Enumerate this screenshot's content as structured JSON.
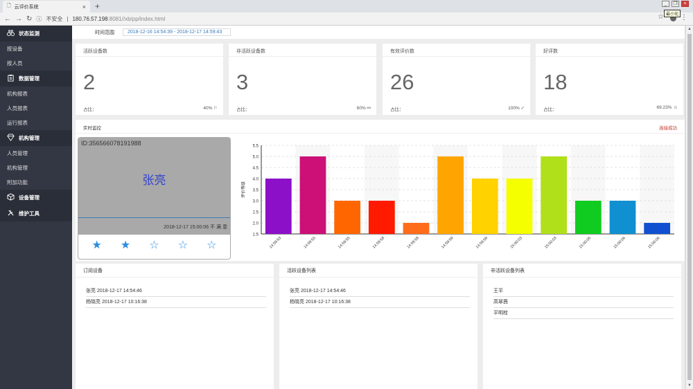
{
  "browser": {
    "tab_title": "云评价系统",
    "security": "不安全",
    "url_host": "180.76.57.198",
    "url_path": ":8081//xb/pp/index.html",
    "tooltip": "最小化"
  },
  "sidebar": [
    {
      "group": "状态监测",
      "icon": "binoculars-icon",
      "items": [
        "按设备",
        "按人员"
      ]
    },
    {
      "group": "数据管理",
      "icon": "clipboard-icon",
      "items": [
        "机构报表",
        "人员报表",
        "运行报表"
      ]
    },
    {
      "group": "机构管理",
      "icon": "diamond-icon",
      "items": [
        "人员管理",
        "机构管理",
        "附加功能"
      ]
    },
    {
      "group": "设备管理",
      "icon": "cube-icon",
      "items": []
    },
    {
      "group": "维护工具",
      "icon": "tools-icon",
      "items": []
    }
  ],
  "time_range": {
    "label": "时间范围",
    "value": "2018-12-16 14:54:39 - 2018-12-17 14:59:43"
  },
  "cards": [
    {
      "title": "活跃设备数",
      "value": "2",
      "ratio_label": "占比：",
      "percent": "40%",
      "icon": "flag-icon",
      "glyph": "⚐"
    },
    {
      "title": "非活跃设备数",
      "value": "3",
      "ratio_label": "占比：",
      "percent": "60%",
      "icon": "link-icon",
      "glyph": "⚯"
    },
    {
      "title": "有效评价数",
      "value": "26",
      "ratio_label": "占比：",
      "percent": "100%",
      "icon": "check-icon",
      "glyph": "✓"
    },
    {
      "title": "好评数",
      "value": "18",
      "ratio_label": "占比：",
      "percent": "69.23%",
      "icon": "smile-icon",
      "glyph": "☺"
    }
  ],
  "realtime": {
    "title": "实时监控",
    "status": "连接成功",
    "monitor": {
      "device_id": "ID:356566078191988",
      "person": "张亮",
      "timestamp": "2018-12-17 15:00:06 不 满 意",
      "rating": 2,
      "max_rating": 5
    }
  },
  "chart_data": {
    "type": "bar",
    "ylabel": "评价等级",
    "ylim": [
      1.5,
      5.5
    ],
    "yticks": [
      1.5,
      2.0,
      2.5,
      3.0,
      3.5,
      4.0,
      4.5,
      5.0,
      5.5
    ],
    "categories": [
      "14:59:53",
      "14:59:55",
      "14:59:55",
      "14:59:58",
      "14:59:58",
      "14:59:59",
      "14:59:59",
      "15:00:03",
      "15:00:03",
      "15:00:05",
      "15:00:06",
      "15:00:06"
    ],
    "values": [
      4,
      5,
      3,
      3,
      2,
      5,
      4,
      4,
      5,
      3,
      3,
      2
    ],
    "colors": [
      "#8b10c8",
      "#cc1077",
      "#ff6600",
      "#ff1a00",
      "#ff6c1a",
      "#ffa500",
      "#ffd200",
      "#f5ff00",
      "#b0e01a",
      "#10cc20",
      "#1090d0",
      "#1050d0"
    ]
  },
  "panels": [
    {
      "title": "订阅设备",
      "rows": [
        "张亮 2018-12-17 14:54:46",
        "杨晓亮 2018-12-17 10:16:38"
      ]
    },
    {
      "title": "活跃设备列表",
      "rows": [
        "张亮 2018-12-17 14:54:46",
        "杨晓亮 2018-12-17 10:16:38"
      ]
    },
    {
      "title": "非活跃设备列表",
      "rows": [
        "王平",
        "高翠茜",
        "平明栓"
      ]
    }
  ]
}
